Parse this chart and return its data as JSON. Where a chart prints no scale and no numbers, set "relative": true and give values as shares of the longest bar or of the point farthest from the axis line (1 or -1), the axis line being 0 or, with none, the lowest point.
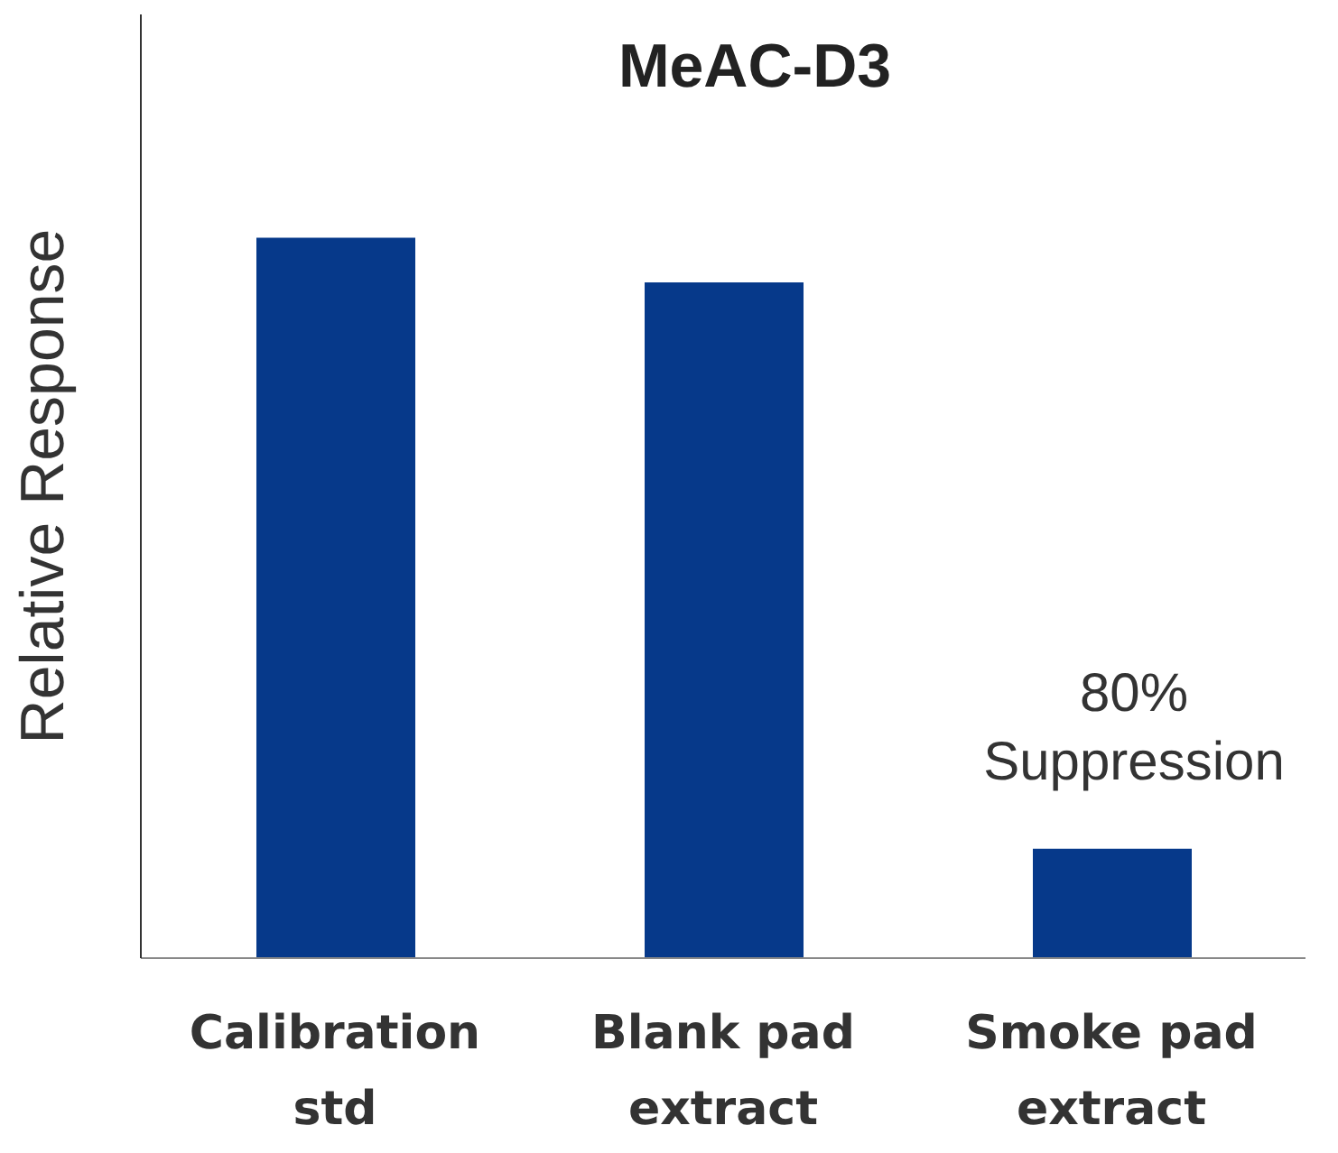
{
  "chart_data": {
    "type": "bar",
    "title": "MeAC-D3",
    "ylabel": "Relative Response",
    "categories": [
      "Calibration std",
      "Blank pad extract",
      "Smoke pad extract"
    ],
    "values": [
      1,
      0.938,
      0.152
    ],
    "color": "#06398a",
    "relative": true,
    "annotations": [
      "80% Suppression"
    ]
  }
}
